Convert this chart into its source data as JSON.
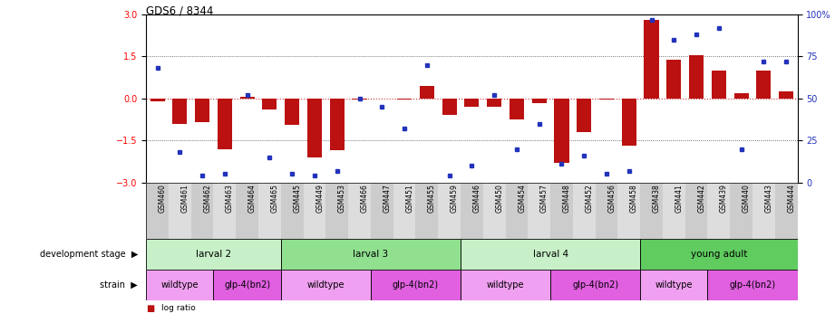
{
  "title": "GDS6 / 8344",
  "samples": [
    "GSM460",
    "GSM461",
    "GSM462",
    "GSM463",
    "GSM464",
    "GSM465",
    "GSM445",
    "GSM449",
    "GSM453",
    "GSM466",
    "GSM447",
    "GSM451",
    "GSM455",
    "GSM459",
    "GSM446",
    "GSM450",
    "GSM454",
    "GSM457",
    "GSM448",
    "GSM452",
    "GSM456",
    "GSM458",
    "GSM438",
    "GSM441",
    "GSM442",
    "GSM439",
    "GSM440",
    "GSM443",
    "GSM444"
  ],
  "log_ratio": [
    -0.1,
    -0.9,
    -0.85,
    -1.8,
    0.05,
    -0.4,
    -0.95,
    -2.1,
    -1.85,
    -0.05,
    0.0,
    -0.05,
    0.45,
    -0.6,
    -0.3,
    -0.3,
    -0.75,
    -0.15,
    -2.3,
    -1.2,
    -0.05,
    -1.7,
    2.8,
    1.4,
    1.55,
    1.0,
    0.2,
    1.0,
    0.25
  ],
  "percentile": [
    68,
    18,
    4,
    5,
    52,
    15,
    5,
    4,
    7,
    50,
    45,
    32,
    70,
    4,
    10,
    52,
    20,
    35,
    11,
    16,
    5,
    7,
    97,
    85,
    88,
    92,
    20,
    72,
    72
  ],
  "dev_stages": [
    {
      "label": "larval 2",
      "start": 0,
      "end": 5,
      "color": "#c8f0c8"
    },
    {
      "label": "larval 3",
      "start": 6,
      "end": 13,
      "color": "#90e090"
    },
    {
      "label": "larval 4",
      "start": 14,
      "end": 21,
      "color": "#c8f0c8"
    },
    {
      "label": "young adult",
      "start": 22,
      "end": 28,
      "color": "#60cc60"
    }
  ],
  "strains": [
    {
      "label": "wildtype",
      "start": 0,
      "end": 2,
      "color": "#f0a0f0"
    },
    {
      "label": "glp-4(bn2)",
      "start": 3,
      "end": 5,
      "color": "#e060e0"
    },
    {
      "label": "wildtype",
      "start": 6,
      "end": 9,
      "color": "#f0a0f0"
    },
    {
      "label": "glp-4(bn2)",
      "start": 10,
      "end": 13,
      "color": "#e060e0"
    },
    {
      "label": "wildtype",
      "start": 14,
      "end": 17,
      "color": "#f0a0f0"
    },
    {
      "label": "glp-4(bn2)",
      "start": 18,
      "end": 21,
      "color": "#e060e0"
    },
    {
      "label": "wildtype",
      "start": 22,
      "end": 24,
      "color": "#f0a0f0"
    },
    {
      "label": "glp-4(bn2)",
      "start": 25,
      "end": 28,
      "color": "#e060e0"
    }
  ],
  "ylim": [
    -3,
    3
  ],
  "yticks_left": [
    -3,
    -1.5,
    0,
    1.5,
    3
  ],
  "yticks_right_vals": [
    0,
    25,
    50,
    75,
    100
  ],
  "yticks_right_labels": [
    "0",
    "25",
    "50",
    "75",
    "100%"
  ],
  "bar_color": "#bb1111",
  "dot_color": "#2233bb",
  "zero_line_color": "#cc3333",
  "dotted_line_color": "#444444"
}
